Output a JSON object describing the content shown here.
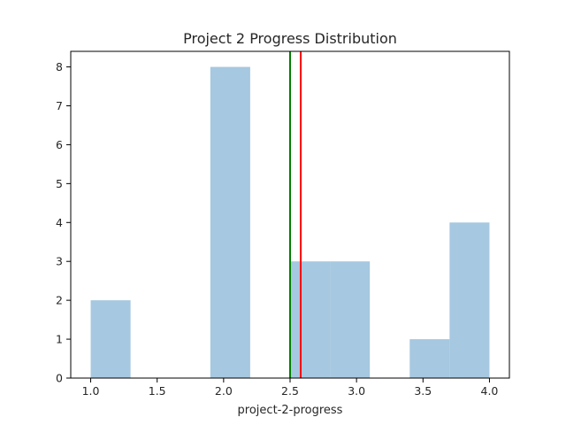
{
  "chart_data": {
    "type": "bar",
    "title": "Project 2 Progress Distribution",
    "xlabel": "project-2-progress",
    "ylabel": "",
    "xlim": [
      0.85,
      4.15
    ],
    "ylim": [
      0,
      8.4
    ],
    "xticks": [
      "1.0",
      "1.5",
      "2.0",
      "2.5",
      "3.0",
      "3.5",
      "4.0"
    ],
    "yticks": [
      "0",
      "1",
      "2",
      "3",
      "4",
      "5",
      "6",
      "7",
      "8"
    ],
    "bins": [
      {
        "x0": 1.0,
        "x1": 1.3,
        "count": 2
      },
      {
        "x0": 1.3,
        "x1": 1.6,
        "count": 0
      },
      {
        "x0": 1.6,
        "x1": 1.9,
        "count": 0
      },
      {
        "x0": 1.9,
        "x1": 2.2,
        "count": 8
      },
      {
        "x0": 2.2,
        "x1": 2.5,
        "count": 0
      },
      {
        "x0": 2.5,
        "x1": 2.8,
        "count": 3
      },
      {
        "x0": 2.8,
        "x1": 3.1,
        "count": 3
      },
      {
        "x0": 3.1,
        "x1": 3.4,
        "count": 0
      },
      {
        "x0": 3.4,
        "x1": 3.7,
        "count": 1
      },
      {
        "x0": 3.7,
        "x1": 4.0,
        "count": 4
      }
    ],
    "vlines": [
      {
        "x": 2.5,
        "color": "#008000"
      },
      {
        "x": 2.58,
        "color": "#ff0000"
      }
    ],
    "bar_color": "#a6c8e0",
    "grid": false,
    "legend": "none"
  }
}
